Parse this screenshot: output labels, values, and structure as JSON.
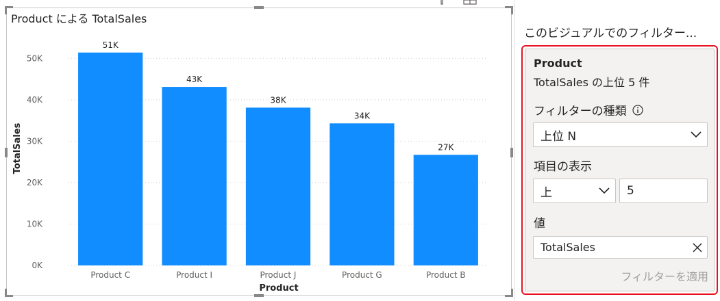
{
  "visual": {
    "title": "Product による TotalSales",
    "header_icons": [
      "filter-icon",
      "focus-mode-icon"
    ]
  },
  "chart_data": {
    "type": "bar",
    "categories": [
      "Product C",
      "Product I",
      "Product J",
      "Product G",
      "Product B"
    ],
    "values": [
      51400,
      43100,
      38100,
      34300,
      26700
    ],
    "data_labels": [
      "51K",
      "43K",
      "38K",
      "34K",
      "27K"
    ],
    "xlabel": "Product",
    "ylabel": "TotalSales",
    "ylim": [
      0,
      55000
    ],
    "yticks": [
      0,
      10000,
      20000,
      30000,
      40000,
      50000
    ],
    "ytick_labels": [
      "0K",
      "10K",
      "20K",
      "30K",
      "40K",
      "50K"
    ],
    "grid": true,
    "bar_color": "#118dff"
  },
  "filter_pane": {
    "heading": "このビジュアルでのフィルター...",
    "card": {
      "field": "Product",
      "summary": "TotalSales の上位 5 件",
      "filter_type_label": "フィルターの種類",
      "filter_type_value": "上位 N",
      "show_items_label": "項目の表示",
      "direction_value": "上",
      "count_value": "5",
      "value_label": "値",
      "value_field": "TotalSales",
      "apply_label": "フィルターを適用"
    },
    "highlight_color": "#e81123"
  }
}
